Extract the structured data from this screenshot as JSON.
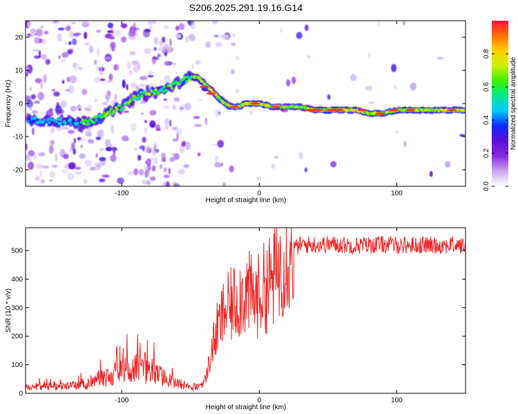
{
  "chart_data": [
    {
      "type": "heatmap",
      "title": "S206.2025.291.19.16.G14",
      "xlabel": "Height of straight line (km)",
      "ylabel": "Frequency (Hz)",
      "xlim": [
        -170,
        150
      ],
      "ylim": [
        -25,
        25
      ],
      "xticks": [
        -100,
        0,
        100
      ],
      "yticks": [
        -20,
        -10,
        0,
        10,
        20
      ],
      "colorbar": {
        "label": "Normalized spectral amplitude",
        "range": [
          0,
          1
        ],
        "ticks": [
          "0.0",
          "0.2",
          "0.4",
          "0.6",
          "0.8"
        ],
        "tick_values": [
          0.0,
          0.2,
          0.4,
          0.6,
          0.8
        ],
        "colors": [
          "#ffffff",
          "#c9a8f0",
          "#8a2be2",
          "#5a0fd8",
          "#1028ff",
          "#00c8ff",
          "#00e890",
          "#3cf000",
          "#c8f000",
          "#ffd000",
          "#ff7000",
          "#ff1040"
        ]
      },
      "ridge": {
        "description_points_x": [
          -170,
          -150,
          -130,
          -120,
          -110,
          -100,
          -90,
          -80,
          -70,
          -60,
          -50,
          -45,
          -40,
          -35,
          -30,
          -25,
          -20,
          -15,
          -10,
          -5,
          0,
          10,
          20,
          30,
          40,
          50,
          60,
          70,
          80,
          90,
          100,
          110,
          120,
          130,
          140,
          148
        ],
        "description_points_y": [
          -5,
          -5,
          -6,
          -5,
          -3,
          -1,
          2,
          3,
          4,
          6,
          8,
          8,
          6,
          4,
          2,
          0,
          -1,
          -1,
          0,
          0,
          0,
          -1,
          -1,
          -1,
          -2,
          -2,
          -2,
          -2,
          -3,
          -3,
          -2,
          -2,
          -2,
          -2,
          -2,
          -2
        ]
      }
    },
    {
      "type": "line",
      "title": "",
      "xlabel": "Height of straight line (km)",
      "ylabel": "SNR (10 * v/v)",
      "xlim": [
        -170,
        150
      ],
      "ylim": [
        0,
        580
      ],
      "xticks": [
        -100,
        0,
        100
      ],
      "yticks": [
        0,
        100,
        200,
        300,
        400,
        500
      ],
      "line_color": "#ee2222",
      "series": [
        {
          "name": "SNR",
          "x": [
            -170,
            -160,
            -150,
            -140,
            -130,
            -120,
            -110,
            -100,
            -95,
            -90,
            -85,
            -80,
            -75,
            -70,
            -65,
            -60,
            -55,
            -50,
            -45,
            -40,
            -38,
            -36,
            -34,
            -32,
            -30,
            -28,
            -26,
            -24,
            -22,
            -20,
            -18,
            -16,
            -14,
            -12,
            -10,
            -8,
            -6,
            -4,
            -2,
            0,
            2,
            4,
            6,
            8,
            10,
            12,
            14,
            16,
            18,
            20,
            22,
            24,
            26,
            28,
            30,
            40,
            50,
            60,
            70,
            80,
            90,
            100,
            110,
            120,
            130,
            140,
            150
          ],
          "values": [
            22,
            25,
            22,
            24,
            30,
            40,
            55,
            75,
            85,
            90,
            80,
            75,
            70,
            60,
            45,
            35,
            25,
            20,
            25,
            40,
            70,
            120,
            160,
            200,
            230,
            250,
            280,
            300,
            290,
            310,
            320,
            330,
            340,
            350,
            355,
            350,
            340,
            330,
            335,
            345,
            360,
            370,
            380,
            390,
            400,
            420,
            440,
            460,
            480,
            490,
            500,
            505,
            510,
            515,
            520,
            520,
            522,
            520,
            518,
            520,
            522,
            520,
            518,
            520,
            518,
            520,
            515
          ]
        }
      ]
    }
  ]
}
